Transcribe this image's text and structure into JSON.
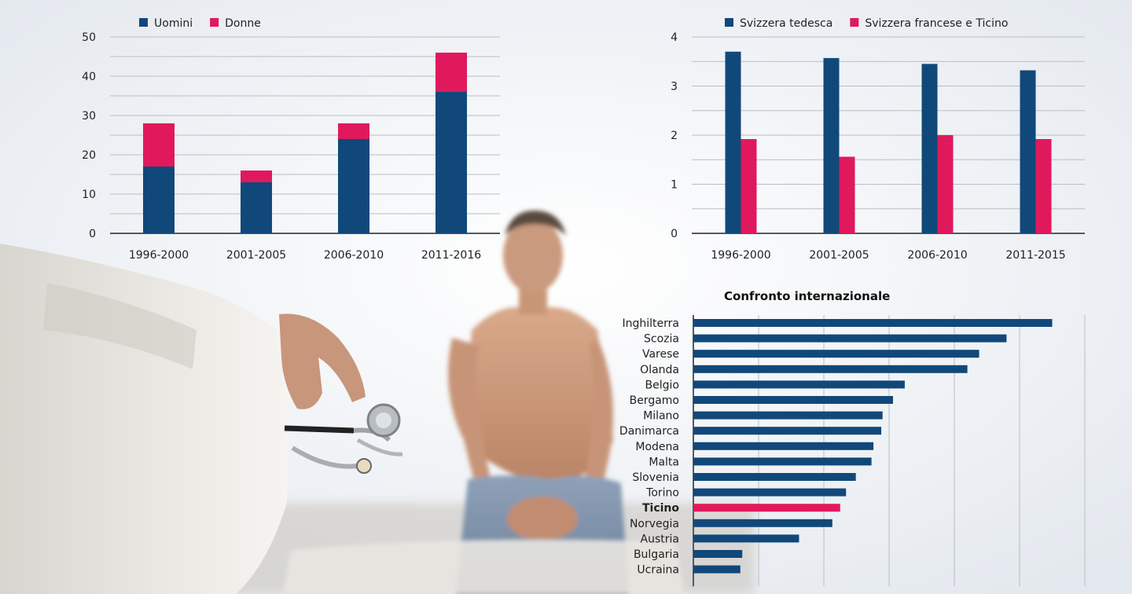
{
  "colors": {
    "blue": "#11487a",
    "pink": "#e0195c",
    "grid": "#b9bec4",
    "axis": "#555a60"
  },
  "chart_data": [
    {
      "type": "bar",
      "stacked": true,
      "categories": [
        "1996-2000",
        "2001-2005",
        "2006-2010",
        "2011-2016"
      ],
      "series": [
        {
          "name": "Uomini",
          "values": [
            17,
            13,
            24,
            36
          ],
          "color": "#11487a"
        },
        {
          "name": "Donne",
          "values": [
            11,
            3,
            4,
            10
          ],
          "color": "#e0195c"
        }
      ],
      "ylim": [
        0,
        50
      ],
      "yticks": [
        0,
        10,
        20,
        30,
        40,
        50
      ],
      "grid": true,
      "legend": "top-left"
    },
    {
      "type": "bar",
      "stacked": false,
      "categories": [
        "1996-2000",
        "2001-2005",
        "2006-2010",
        "2011-2015"
      ],
      "series": [
        {
          "name": "Svizzera tedesca",
          "values": [
            3.7,
            3.57,
            3.45,
            3.32
          ],
          "color": "#11487a"
        },
        {
          "name": "Svizzera francese e Ticino",
          "values": [
            1.92,
            1.56,
            2.0,
            1.92
          ],
          "color": "#e0195c"
        }
      ],
      "ylim": [
        0,
        4
      ],
      "yticks": [
        0,
        1,
        2,
        3,
        4
      ],
      "grid": true,
      "legend": "top-left"
    },
    {
      "type": "bar",
      "orientation": "horizontal",
      "title": "Confronto internazionale",
      "categories": [
        "Inghilterra",
        "Scozia",
        "Varese",
        "Olanda",
        "Belgio",
        "Bergamo",
        "Milano",
        "Danimarca",
        "Modena",
        "Malta",
        "Slovenia",
        "Torino",
        "Ticino",
        "Norvegia",
        "Austria",
        "Bulgaria",
        "Ucraina"
      ],
      "values": [
        5.5,
        4.8,
        4.38,
        4.2,
        3.24,
        3.06,
        2.9,
        2.88,
        2.76,
        2.73,
        2.49,
        2.34,
        2.25,
        2.13,
        1.62,
        0.75,
        0.72
      ],
      "highlight": "Ticino",
      "highlight_color": "#e0195c",
      "color": "#11487a",
      "xlim": [
        0,
        6
      ],
      "grid": true
    }
  ]
}
